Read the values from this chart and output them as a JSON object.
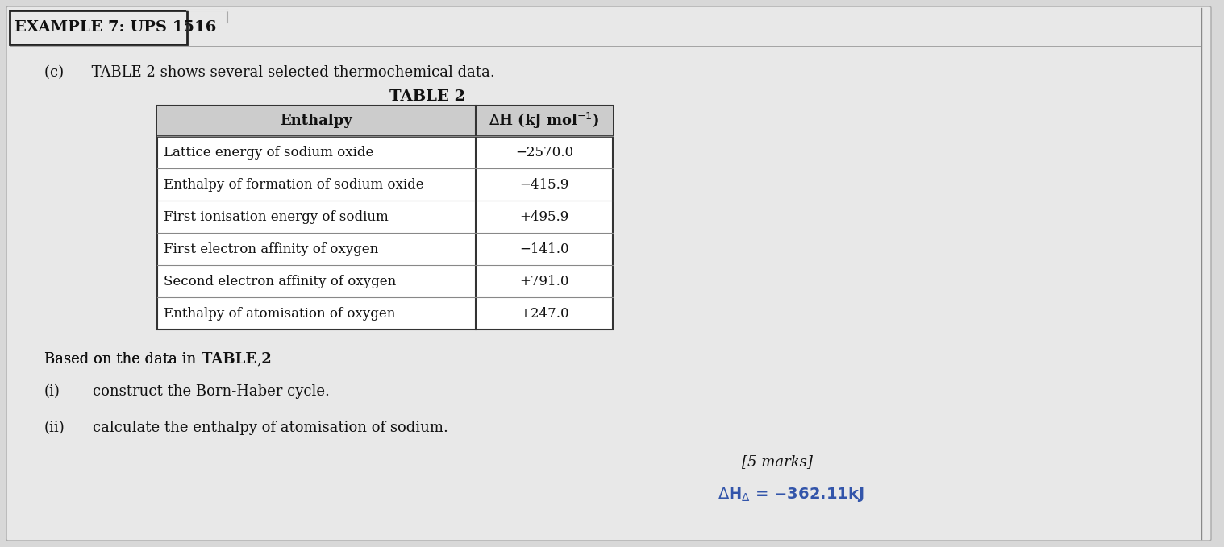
{
  "title_box": "EXAMPLE 7: UPS 1516",
  "subtitle": "(c)      TABLE 2 shows several selected thermochemical data.",
  "table_title": "TABLE 2",
  "col_headers": [
    "Enthalpy",
    "ΔH (kJ mol⁻¹)"
  ],
  "rows": [
    [
      "Lattice energy of sodium oxide",
      "−2570.0"
    ],
    [
      "Enthalpy of formation of sodium oxide",
      "−415.9"
    ],
    [
      "First ionisation energy of sodium",
      "+495.9"
    ],
    [
      "First electron affinity of oxygen",
      "−141.0"
    ],
    [
      "Second electron affinity of oxygen",
      "+791.0"
    ],
    [
      "Enthalpy of atomisation of oxygen",
      "+247.0"
    ]
  ],
  "based_on_text": "Based on the data in TABLE 2,",
  "question_i": "(i)       construct the Born-Haber cycle.",
  "question_ii": "(ii)      calculate the enthalpy of atomisation of sodium.",
  "marks": "[5 marks]",
  "answer": "ΔHΔ = −362.11kJ",
  "bg_color": "#d8d8d8",
  "paper_color": "#e8e8e8",
  "table_bg": "#f0f0f0",
  "answer_color": "#3355aa"
}
